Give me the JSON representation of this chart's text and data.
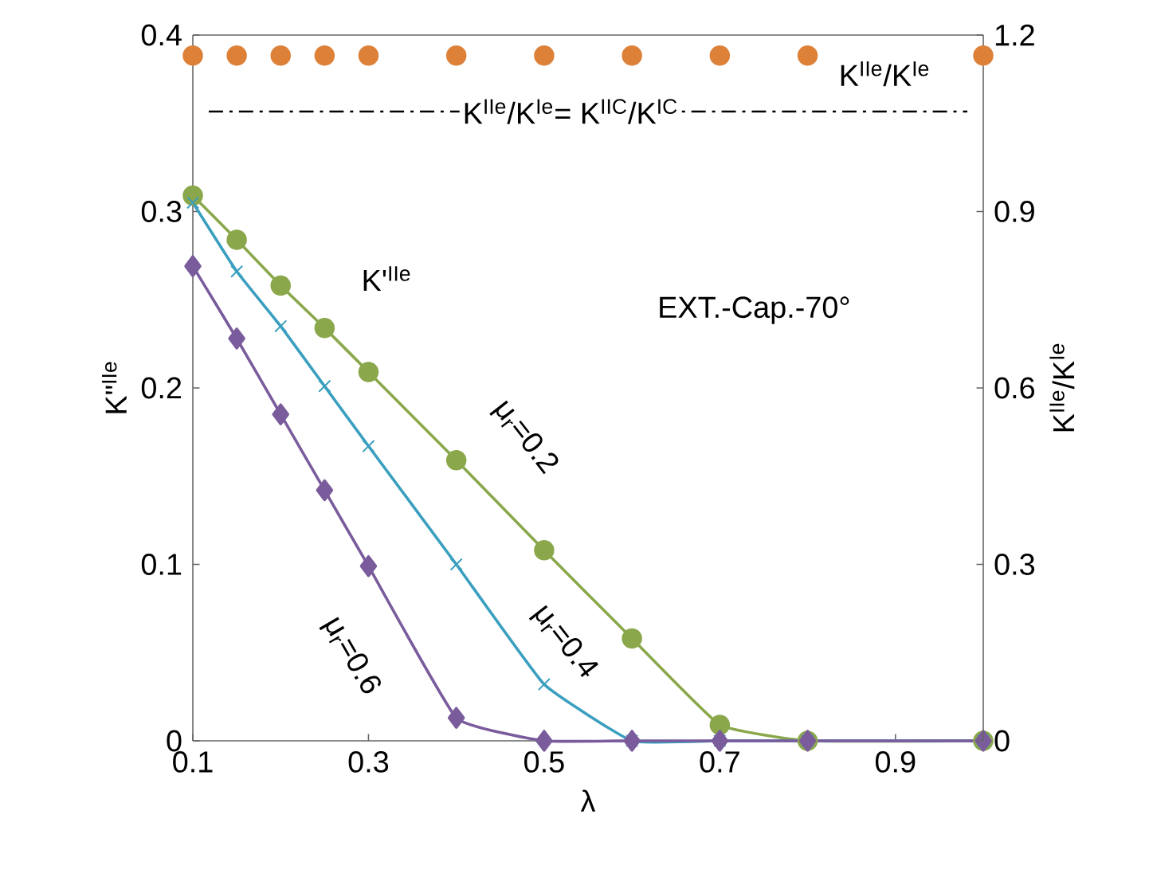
{
  "chart_data": {
    "type": "line",
    "xlabel": "λ",
    "ylabel": "K\"$^{IIe}$",
    "y2label": "K$^{IIe}$/K$^{Ie}$",
    "x": [
      0.1,
      0.15,
      0.2,
      0.25,
      0.3,
      0.4,
      0.5,
      0.6,
      0.7,
      0.8,
      1.0
    ],
    "series": [
      {
        "name": "μ$_{r}$=0.2",
        "color": "#8aa84b",
        "marker": "circle",
        "values": [
          0.309,
          0.284,
          0.258,
          0.234,
          0.209,
          0.159,
          0.108,
          0.058,
          0.009,
          0,
          0
        ]
      },
      {
        "name": "μ$_{r}$=0.4",
        "color": "#3a9fbf",
        "marker": "cross",
        "values": [
          0.305,
          0.266,
          0.235,
          0.201,
          0.167,
          0.1,
          0.032,
          0,
          0,
          0,
          0
        ]
      },
      {
        "name": "μ$_{r}$=0.6",
        "color": "#7a5c9c",
        "marker": "diamond",
        "values": [
          0.269,
          0.228,
          0.185,
          0.142,
          0.099,
          0.013,
          0,
          0,
          0,
          0,
          0
        ]
      },
      {
        "name": "K$^{IIe}$/K$^{Ie}$",
        "type": "scatter",
        "axis": "y2",
        "color": "#dd8139",
        "marker": "circle",
        "values": [
          1.165,
          1.165,
          1.165,
          1.165,
          1.165,
          1.165,
          1.165,
          1.165,
          1.165,
          1.165,
          1.165
        ]
      }
    ],
    "xlim": [
      0.1,
      1.0
    ],
    "xticks": [
      0.1,
      0.3,
      0.5,
      0.7,
      0.9
    ],
    "ylim": [
      0,
      0.4
    ],
    "yticks": [
      0,
      0.1,
      0.2,
      0.3,
      0.4
    ],
    "y2lim": [
      0,
      1.2
    ],
    "y2ticks": [
      0,
      0.3,
      0.6,
      0.9,
      1.2
    ],
    "ref_lines": [
      {
        "axis": "y2",
        "value": 1.07,
        "label": "K$^{IIe}$/K$^{Ie}$= K$^{IIC}$/K$^{IC}$",
        "color": "#000000",
        "line_style": "dashdot"
      }
    ],
    "annotations": [
      "K'$^{IIe}$",
      "EXT.-Cap.-70°"
    ],
    "grid": false
  }
}
